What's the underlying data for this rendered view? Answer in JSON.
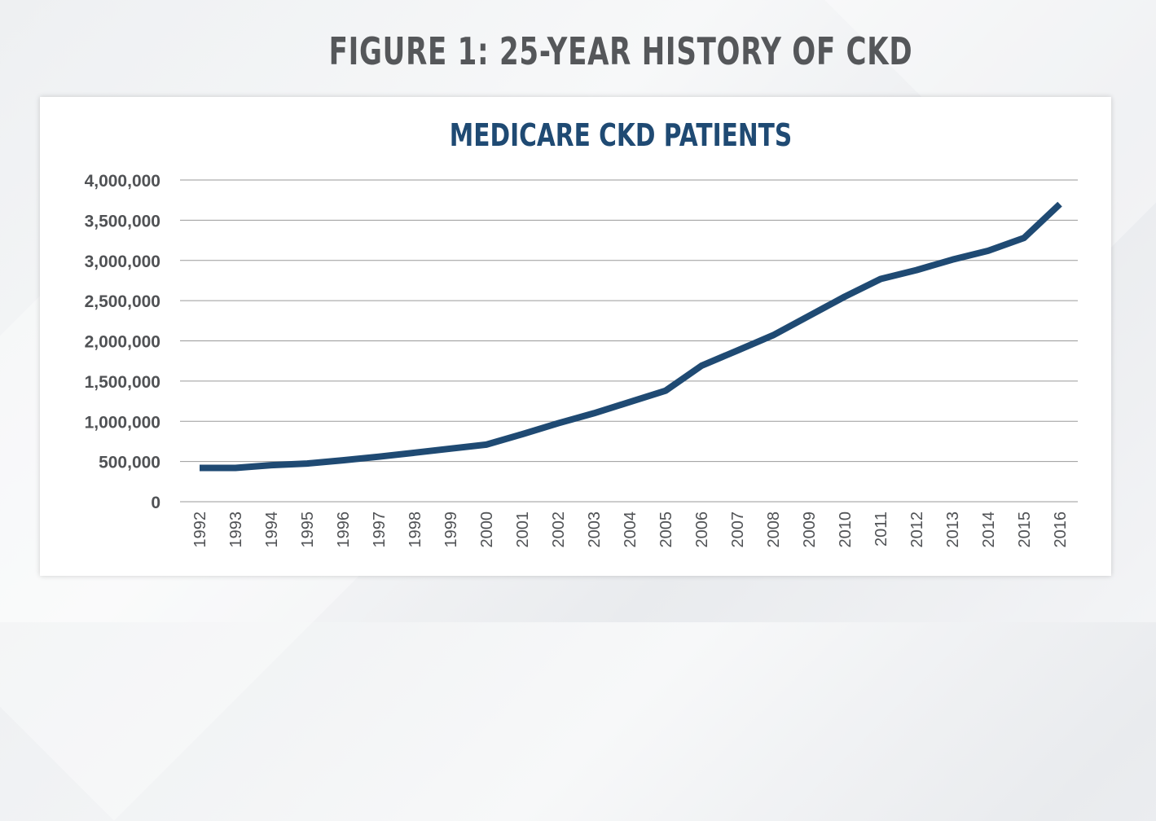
{
  "page": {
    "title": "FIGURE 1: 25-YEAR HISTORY OF CKD"
  },
  "colors": {
    "line": "#1f4a73",
    "title": "#55575a",
    "chart_title": "#1f4a73",
    "grid": "#9a9a9a",
    "tick_text": "#505255"
  },
  "chart_data": {
    "type": "line",
    "title": "MEDICARE CKD PATIENTS",
    "xlabel": "",
    "ylabel": "",
    "x": [
      "1992",
      "1993",
      "1994",
      "1995",
      "1996",
      "1997",
      "1998",
      "1999",
      "2000",
      "2001",
      "2002",
      "2003",
      "2004",
      "2005",
      "2006",
      "2007",
      "2008",
      "2009",
      "2010",
      "2011",
      "2012",
      "2013",
      "2014",
      "2015",
      "2016"
    ],
    "series": [
      {
        "values": [
          420000,
          420000,
          455000,
          475000,
          515000,
          560000,
          610000,
          660000,
          710000,
          840000,
          975000,
          1100000,
          1240000,
          1380000,
          1690000,
          1880000,
          2070000,
          2310000,
          2550000,
          2770000,
          2880000,
          3010000,
          3120000,
          3280000,
          3700000
        ]
      }
    ],
    "ylim": [
      0,
      4000000
    ],
    "yticks": [
      "0",
      "500,000",
      "1,000,000",
      "1,500,000",
      "2,000,000",
      "2,500,000",
      "3,000,000",
      "3,500,000",
      "4,000,000"
    ],
    "ytick_values": [
      0,
      500000,
      1000000,
      1500000,
      2000000,
      2500000,
      3000000,
      3500000,
      4000000
    ],
    "grid": true,
    "legend": "none"
  }
}
